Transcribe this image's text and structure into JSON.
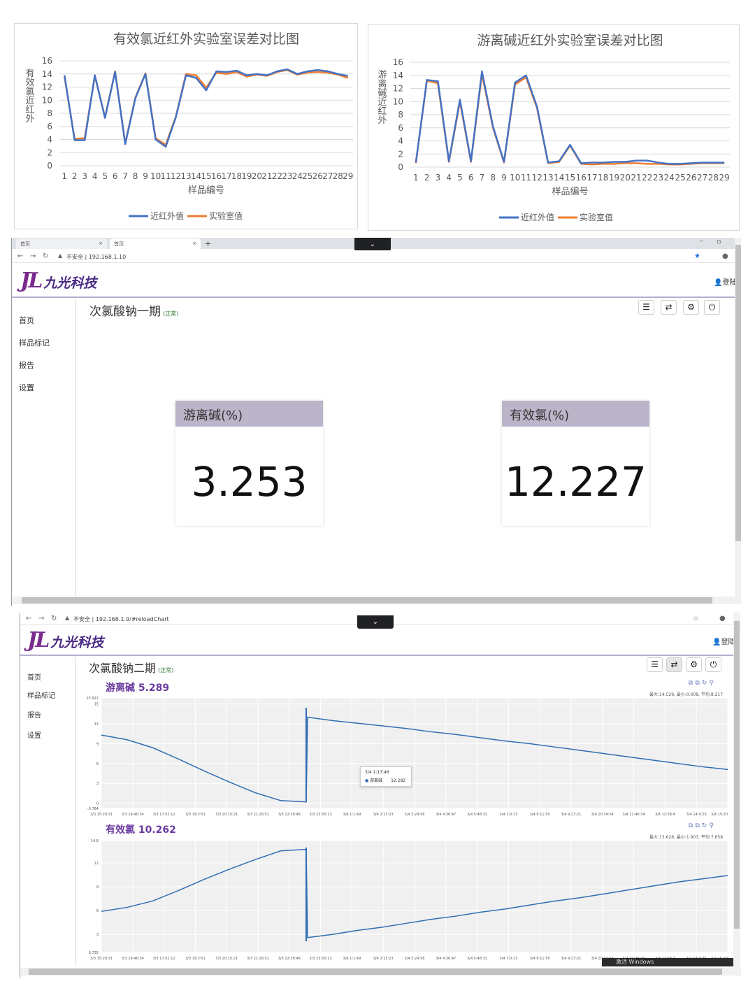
{
  "chart_data": [
    {
      "type": "line",
      "title": "有效氯近红外实验室误差对比图",
      "xlabel": "样品编号",
      "ylabel": "有效氯近红外",
      "ylim": [
        0,
        16
      ],
      "yticks": [
        "0",
        "2",
        "4",
        "6",
        "8",
        "10",
        "12",
        "14",
        "16"
      ],
      "x": [
        "1",
        "2",
        "3",
        "4",
        "5",
        "6",
        "7",
        "8",
        "9",
        "10",
        "11",
        "12",
        "13",
        "14",
        "15",
        "16",
        "17",
        "18",
        "19",
        "20",
        "21",
        "22",
        "23",
        "24",
        "25",
        "26",
        "27",
        "28",
        "29"
      ],
      "series": [
        {
          "name": "近红外值",
          "color": "#4472c4",
          "values": [
            13.8,
            3.9,
            3.9,
            13.8,
            7.3,
            14.3,
            3.3,
            10.3,
            14.0,
            4.0,
            2.9,
            7.4,
            13.8,
            13.4,
            11.5,
            14.4,
            14.3,
            14.5,
            13.8,
            14.0,
            13.8,
            14.4,
            14.7,
            14.0,
            14.4,
            14.6,
            14.4,
            14.0,
            13.7
          ]
        },
        {
          "name": "实验室值",
          "color": "#ed7d31",
          "values": [
            13.6,
            4.1,
            4.2,
            13.7,
            7.4,
            14.4,
            3.4,
            10.4,
            14.1,
            4.2,
            3.2,
            7.5,
            14.0,
            13.8,
            11.9,
            14.2,
            14.0,
            14.3,
            13.6,
            13.9,
            13.7,
            14.3,
            14.6,
            13.9,
            14.2,
            14.3,
            14.2,
            13.9,
            13.4
          ]
        }
      ],
      "legend": "bottom"
    },
    {
      "type": "line",
      "title": "游离碱近红外实验室误差对比图",
      "xlabel": "样品编号",
      "ylabel": "游离碱近红外",
      "ylim": [
        0,
        16
      ],
      "yticks": [
        "0",
        "2",
        "4",
        "6",
        "8",
        "10",
        "12",
        "14",
        "16"
      ],
      "x": [
        "1",
        "2",
        "3",
        "4",
        "5",
        "6",
        "7",
        "8",
        "9",
        "10",
        "11",
        "12",
        "13",
        "14",
        "15",
        "16",
        "17",
        "18",
        "19",
        "20",
        "21",
        "22",
        "23",
        "24",
        "25",
        "26",
        "27",
        "28",
        "29"
      ],
      "series": [
        {
          "name": "近红外值",
          "color": "#4472c4",
          "values": [
            0.7,
            13.3,
            13.1,
            0.9,
            10.3,
            0.9,
            14.6,
            6.2,
            0.8,
            12.9,
            14.0,
            9.2,
            0.7,
            0.9,
            3.4,
            0.6,
            0.7,
            0.7,
            0.8,
            0.8,
            1.0,
            1.0,
            0.7,
            0.5,
            0.5,
            0.6,
            0.7,
            0.7,
            0.7
          ]
        },
        {
          "name": "实验室值",
          "color": "#ed7d31",
          "values": [
            0.6,
            13.2,
            12.8,
            0.8,
            10.0,
            0.8,
            14.2,
            6.0,
            0.7,
            12.6,
            13.7,
            9.0,
            0.6,
            0.8,
            3.3,
            0.5,
            0.4,
            0.5,
            0.5,
            0.6,
            0.6,
            0.5,
            0.5,
            0.4,
            0.4,
            0.5,
            0.6,
            0.6,
            0.6
          ]
        }
      ],
      "legend": "bottom"
    },
    {
      "type": "line",
      "title": "游离碱 5.289",
      "stats": "最大:14.529, 最小:0.608, 平均:8.217",
      "ylim": [
        -0.784,
        15.921
      ],
      "yticks": [
        "15.921",
        "15",
        "12",
        "9",
        "6",
        "3",
        "0",
        "-0.784"
      ],
      "xticks": [
        "3/3 15:28:31",
        "3/3 16:40:34",
        "3/3 17:52:12",
        "3/3 19:3:51",
        "3/3 20:15:21",
        "3/3 21:26:51",
        "3/3 22:38:46",
        "3/3 23:50:13",
        "3/4 1:1:49",
        "3/4 2:13:23",
        "3/4 3:24:58",
        "3/4 4:36:47",
        "3/4 5:48:32",
        "3/4 7:0:13",
        "3/4 8:11:50",
        "3/4 9:23:21",
        "3/4 10:34:54",
        "3/4 11:46:34",
        "3/4 12:58:4",
        "3/4 14:9:26",
        "3/4 15:20"
      ],
      "series": [
        {
          "name": "游离碱",
          "color": "#2f6db5",
          "values": [
            10.3,
            9.6,
            8.4,
            6.7,
            4.9,
            3.2,
            1.6,
            0.4,
            0.2,
            13.0,
            12.5,
            12.1,
            11.7,
            11.3,
            10.8,
            10.4,
            9.9,
            9.4,
            9.0,
            8.5,
            8.0,
            7.5,
            7.0,
            6.5,
            6.0,
            5.5,
            5.1
          ]
        }
      ],
      "tooltip": {
        "time": "3/4 1:17:46",
        "name": "游离碱",
        "value": "12.282"
      }
    },
    {
      "type": "line",
      "title": "有效氯 10.262",
      "stats": "最大:13.628, 最小:1.907, 平均:7.658",
      "ylim": [
        0.735,
        14.8
      ],
      "yticks": [
        "14.8",
        "12",
        "9",
        "6",
        "3",
        "0.735"
      ],
      "xticks": [
        "3/3 15:28:31",
        "3/3 16:40:34",
        "3/3 17:52:12",
        "3/3 19:3:51",
        "3/3 20:15:21",
        "3/3 21:26:51",
        "3/3 22:38:46",
        "3/3 23:50:13",
        "3/4 1:1:49",
        "3/4 2:13:23",
        "3/4 3:24:58",
        "3/4 4:36:47",
        "3/4 5:48:32",
        "3/4 7:0:13",
        "3/4 8:11:50",
        "3/4 9:23:21",
        "3/4 10:34:54",
        "3/4 11:46:34",
        "3/4 12:58:4",
        "3/4 14:9:26",
        "3/4 15:20"
      ],
      "series": [
        {
          "name": "有效氯",
          "color": "#2f6db5",
          "values": [
            5.9,
            6.4,
            7.2,
            8.5,
            9.9,
            11.2,
            12.4,
            13.5,
            13.7,
            2.6,
            3.0,
            3.5,
            3.9,
            4.4,
            4.9,
            5.3,
            5.8,
            6.2,
            6.7,
            7.2,
            7.6,
            8.1,
            8.6,
            9.1,
            9.6,
            10.0,
            10.4
          ]
        }
      ]
    }
  ],
  "screen1": {
    "tabs": [
      "首页",
      "首页"
    ],
    "address": "不安全 | 192.168.1.10",
    "logo_text": "九光科技",
    "logo_mark": "JL",
    "login": "登陆",
    "nav": [
      "首页",
      "样品标记",
      "报告",
      "设置"
    ],
    "page_title": "次氯酸钠一期",
    "status": "(正常)",
    "cards": [
      {
        "label": "游离碱(%)",
        "value": "3.253"
      },
      {
        "label": "有效氯(%)",
        "value": "12.227"
      }
    ]
  },
  "screen2": {
    "address": "不安全 | 192.168.1.9/#reloadChart",
    "logo_text": "九光科技",
    "logo_mark": "JL",
    "login": "登陆",
    "nav": [
      "首页",
      "样品标记",
      "报告",
      "设置"
    ],
    "page_title": "次氯酸钠二期",
    "status": "(正常)",
    "taskbar": "激活 Windows"
  },
  "icons": {
    "list": "list-icon",
    "swap": "swap-icon",
    "gear": "gear-icon",
    "power": "power-icon"
  }
}
